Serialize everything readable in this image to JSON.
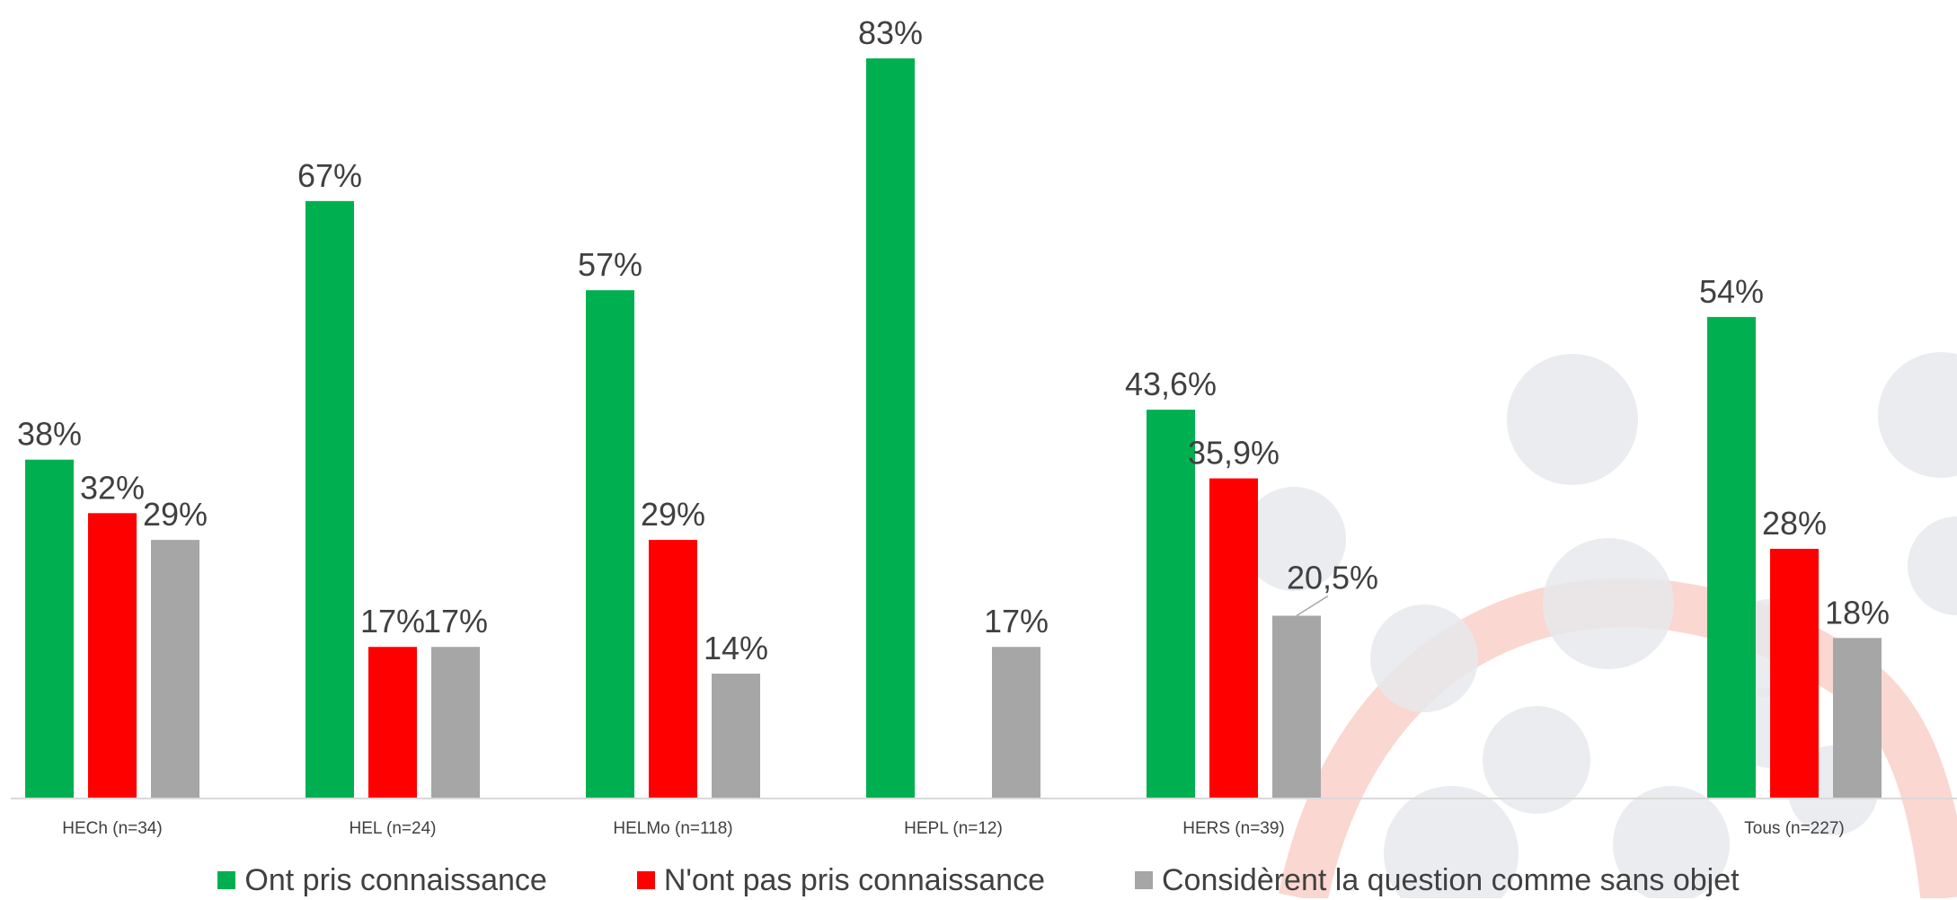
{
  "chart_data": {
    "type": "bar",
    "categories": [
      "HECh (n=34)",
      "HEL (n=24)",
      "HELMo (n=118)",
      "HEPL (n=12)",
      "HERS (n=39)",
      "",
      "Tous (n=227)"
    ],
    "series": [
      {
        "name": "Ont pris connaissance",
        "color": "#00B050",
        "values": [
          38,
          67,
          57,
          83,
          43.6,
          null,
          54
        ],
        "labels": [
          "38%",
          "67%",
          "57%",
          "83%",
          "43,6%",
          "",
          "54%"
        ]
      },
      {
        "name": "N'ont pas pris connaissance",
        "color": "#FF0000",
        "values": [
          32,
          17,
          29,
          0,
          35.9,
          null,
          28
        ],
        "labels": [
          "32%",
          "17%",
          "29%",
          "",
          "35,9%",
          "",
          "28%"
        ]
      },
      {
        "name": "Considèrent la question comme sans objet",
        "color": "#A6A6A6",
        "values": [
          29,
          17,
          14,
          17,
          20.5,
          null,
          18
        ],
        "labels": [
          "29%",
          "17%",
          "14%",
          "17%",
          "20,5%",
          "",
          "18%"
        ]
      }
    ],
    "ylim": [
      0,
      90
    ],
    "grid": false,
    "legend_position": "bottom",
    "title": "",
    "xlabel": "",
    "ylabel": ""
  }
}
